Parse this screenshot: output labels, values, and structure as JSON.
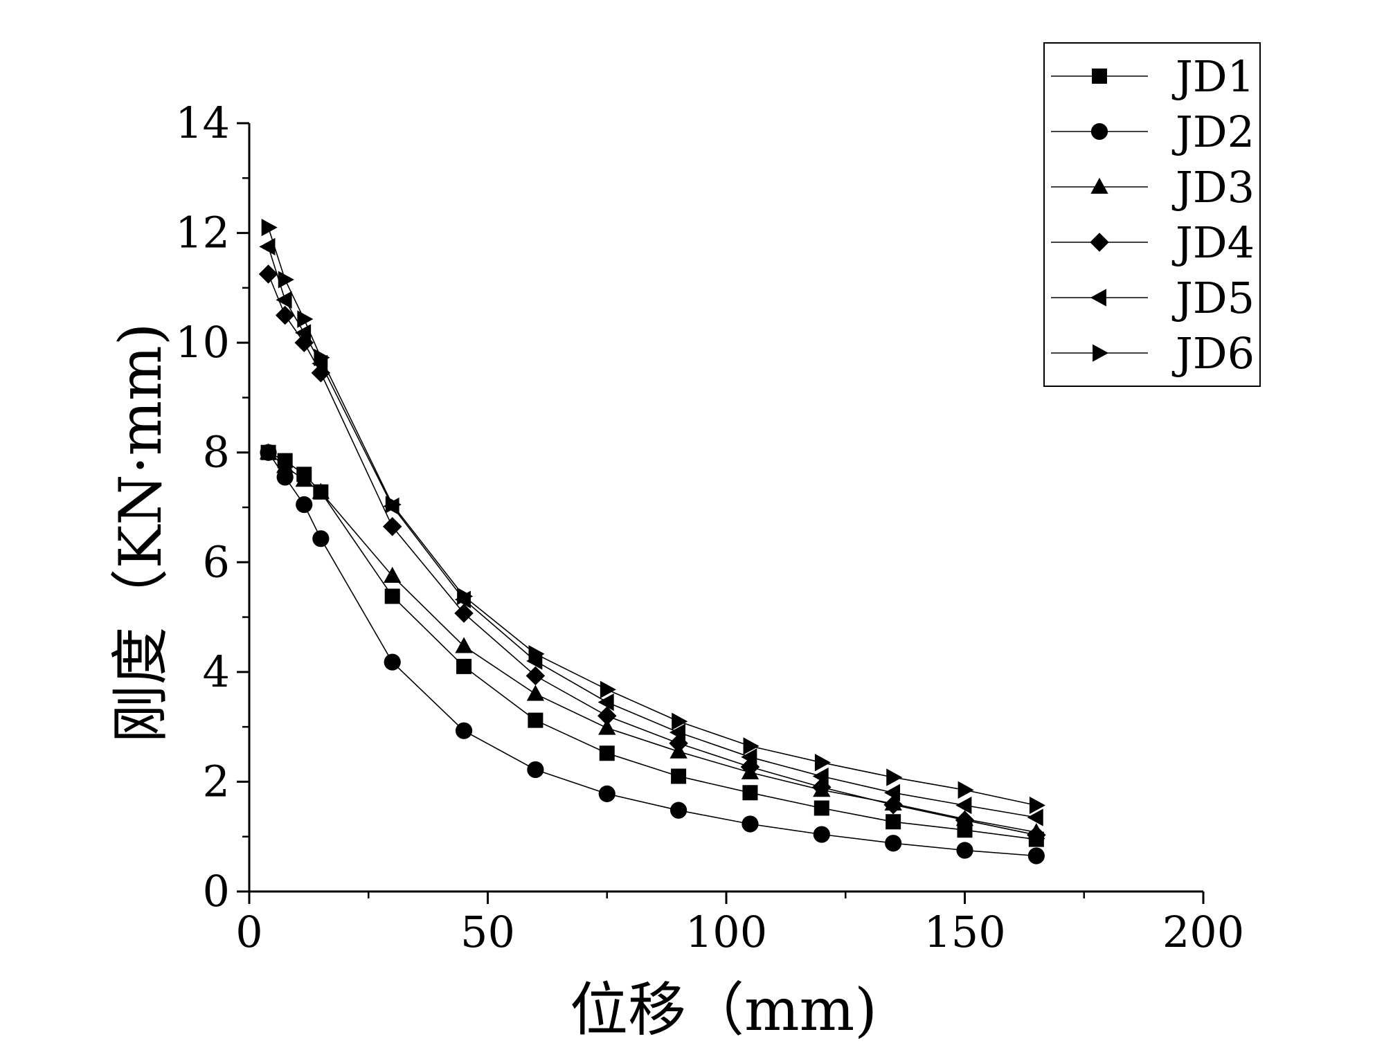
{
  "chart_data": {
    "type": "line",
    "title": "",
    "xlabel": "位移（mm)",
    "ylabel": "刚度（KN·mm)",
    "xlim": [
      0,
      200
    ],
    "ylim": [
      0,
      14
    ],
    "xticks": [
      "0",
      "50",
      "100",
      "150",
      "200"
    ],
    "yticks": [
      "0",
      "2",
      "4",
      "6",
      "8",
      "10",
      "12",
      "14"
    ],
    "grid": false,
    "legend_position": "top-right",
    "line_color": "#000000",
    "series": [
      {
        "name": "JD1",
        "marker": "square",
        "x": [
          4,
          7.5,
          11.5,
          15,
          30,
          45,
          60,
          75,
          90,
          105,
          120,
          135,
          150,
          165
        ],
        "y": [
          8.0,
          7.85,
          7.6,
          7.28,
          5.38,
          4.1,
          3.12,
          2.52,
          2.1,
          1.8,
          1.52,
          1.27,
          1.12,
          0.95
        ]
      },
      {
        "name": "JD2",
        "marker": "circle",
        "x": [
          4,
          7.5,
          11.5,
          15,
          30,
          45,
          60,
          75,
          90,
          105,
          120,
          135,
          150,
          165
        ],
        "y": [
          8.0,
          7.55,
          7.05,
          6.43,
          4.18,
          2.93,
          2.22,
          1.78,
          1.48,
          1.23,
          1.04,
          0.88,
          0.75,
          0.65
        ]
      },
      {
        "name": "JD3",
        "marker": "triangle-up",
        "x": [
          4,
          7.5,
          11.5,
          15,
          30,
          45,
          60,
          75,
          90,
          105,
          120,
          135,
          150,
          165
        ],
        "y": [
          8.0,
          7.75,
          7.5,
          7.28,
          5.75,
          4.47,
          3.6,
          2.98,
          2.55,
          2.17,
          1.85,
          1.6,
          1.32,
          1.08
        ]
      },
      {
        "name": "JD4",
        "marker": "diamond",
        "x": [
          4,
          7.5,
          11.5,
          15,
          30,
          45,
          60,
          75,
          90,
          105,
          120,
          135,
          150,
          165
        ],
        "y": [
          11.25,
          10.5,
          10.0,
          9.45,
          6.65,
          5.07,
          3.93,
          3.2,
          2.7,
          2.27,
          1.9,
          1.58,
          1.3,
          1.03
        ]
      },
      {
        "name": "JD5",
        "marker": "triangle-left",
        "x": [
          4,
          7.5,
          11.5,
          15,
          30,
          45,
          60,
          75,
          90,
          105,
          120,
          135,
          150,
          165
        ],
        "y": [
          11.75,
          10.78,
          10.18,
          9.62,
          7.02,
          5.32,
          4.2,
          3.45,
          2.9,
          2.45,
          2.1,
          1.8,
          1.57,
          1.35
        ]
      },
      {
        "name": "JD6",
        "marker": "triangle-right",
        "x": [
          4,
          7.5,
          11.5,
          15,
          30,
          45,
          60,
          75,
          90,
          105,
          120,
          135,
          150,
          165
        ],
        "y": [
          12.1,
          11.15,
          10.43,
          9.73,
          7.05,
          5.38,
          4.33,
          3.68,
          3.1,
          2.65,
          2.35,
          2.08,
          1.85,
          1.57
        ]
      }
    ]
  }
}
